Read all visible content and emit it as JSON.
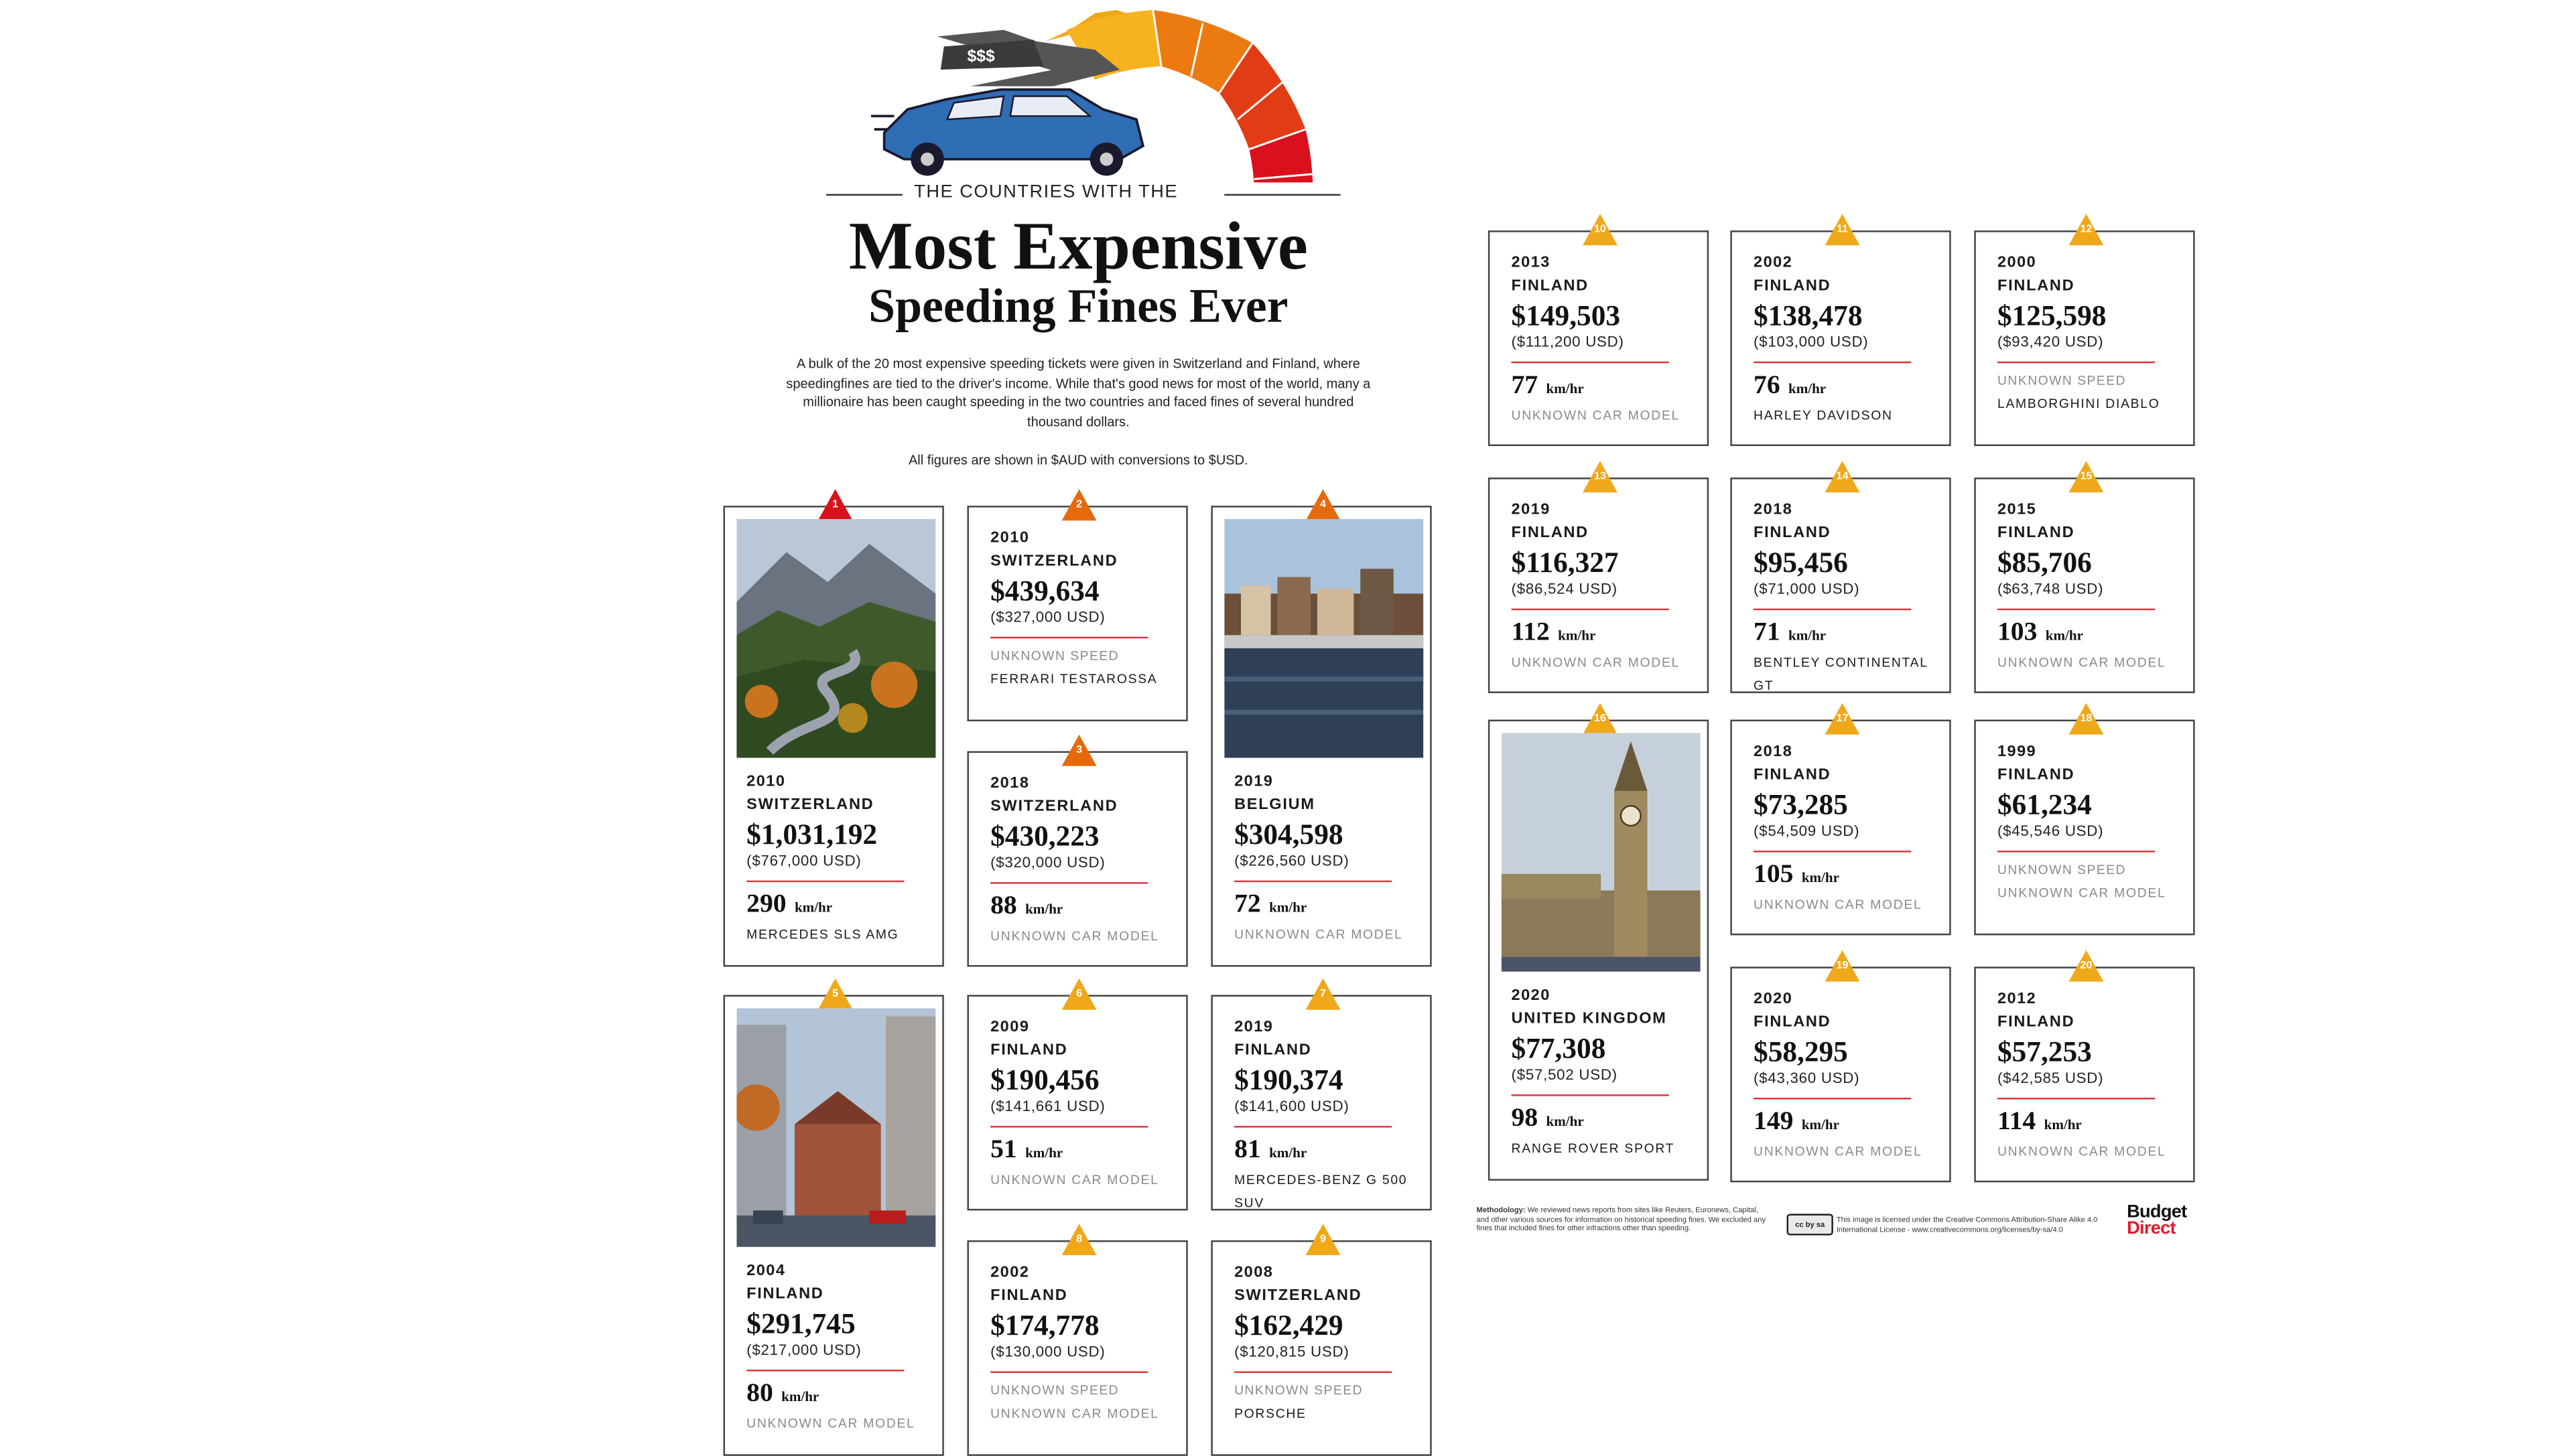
{
  "header": {
    "supertitle": "THE COUNTRIES WITH THE",
    "title_line1": "Most Expensive",
    "title_line2": "Speeding Fines Ever",
    "speedo_sign": "$$$",
    "intro": "A bulk of the 20 most expensive speeding tickets were given in Switzerland and Finland, where speedingfines are tied to the driver's income. While that's good news for most of the world, many a millionaire has been caught speeding in the two countries and faced fines of several hundred thousand dollars.",
    "note": "All figures are shown in $AUD with conversions to $USD."
  },
  "colors": {
    "accent_red": "#d9363e",
    "rank_gradient": [
      "#d9111d",
      "#e66a0c",
      "#f0a81b"
    ],
    "car_blue": "#2f6db5"
  },
  "unit": "km/hr",
  "fines": [
    {
      "rank": "1",
      "year": "2010",
      "country": "SWITZERLAND",
      "aud": "$1,031,192",
      "usd": "($767,000 USD)",
      "speed": "290",
      "car": "MERCEDES SLS AMG",
      "photo": "mountain-road"
    },
    {
      "rank": "2",
      "year": "2010",
      "country": "SWITZERLAND",
      "aud": "$439,634",
      "usd": "($327,000 USD)",
      "speed": "UNKNOWN SPEED",
      "car": "FERRARI TESTAROSSA"
    },
    {
      "rank": "3",
      "year": "2018",
      "country": "SWITZERLAND",
      "aud": "$430,223",
      "usd": "($320,000 USD)",
      "speed": "88",
      "car": "UNKNOWN CAR MODEL"
    },
    {
      "rank": "4",
      "year": "2019",
      "country": "BELGIUM",
      "aud": "$304,598",
      "usd": "($226,560 USD)",
      "speed": "72",
      "car": "UNKNOWN CAR MODEL",
      "photo": "riverside-town"
    },
    {
      "rank": "5",
      "year": "2004",
      "country": "FINLAND",
      "aud": "$291,745",
      "usd": "($217,000 USD)",
      "speed": "80",
      "car": "UNKNOWN CAR MODEL",
      "photo": "helsinki-street"
    },
    {
      "rank": "6",
      "year": "2009",
      "country": "FINLAND",
      "aud": "$190,456",
      "usd": "($141,661 USD)",
      "speed": "51",
      "car": "UNKNOWN CAR MODEL"
    },
    {
      "rank": "7",
      "year": "2019",
      "country": "FINLAND",
      "aud": "$190,374",
      "usd": "($141,600 USD)",
      "speed": "81",
      "car": "MERCEDES-BENZ G 500 SUV"
    },
    {
      "rank": "8",
      "year": "2002",
      "country": "FINLAND",
      "aud": "$174,778",
      "usd": "($130,000 USD)",
      "speed": "UNKNOWN SPEED",
      "car": "UNKNOWN CAR MODEL"
    },
    {
      "rank": "9",
      "year": "2008",
      "country": "SWITZERLAND",
      "aud": "$162,429",
      "usd": "($120,815 USD)",
      "speed": "UNKNOWN SPEED",
      "car": "PORSCHE"
    },
    {
      "rank": "10",
      "year": "2013",
      "country": "FINLAND",
      "aud": "$149,503",
      "usd": "($111,200 USD)",
      "speed": "77",
      "car": "UNKNOWN CAR MODEL"
    },
    {
      "rank": "11",
      "year": "2002",
      "country": "FINLAND",
      "aud": "$138,478",
      "usd": "($103,000 USD)",
      "speed": "76",
      "car": "HARLEY DAVIDSON"
    },
    {
      "rank": "12",
      "year": "2000",
      "country": "FINLAND",
      "aud": "$125,598",
      "usd": "($93,420 USD)",
      "speed": "UNKNOWN SPEED",
      "car": "LAMBORGHINI DIABLO"
    },
    {
      "rank": "13",
      "year": "2019",
      "country": "FINLAND",
      "aud": "$116,327",
      "usd": "($86,524 USD)",
      "speed": "112",
      "car": "UNKNOWN CAR MODEL"
    },
    {
      "rank": "14",
      "year": "2018",
      "country": "FINLAND",
      "aud": "$95,456",
      "usd": "($71,000 USD)",
      "speed": "71",
      "car": "BENTLEY CONTINENTAL GT"
    },
    {
      "rank": "15",
      "year": "2015",
      "country": "FINLAND",
      "aud": "$85,706",
      "usd": "($63,748 USD)",
      "speed": "103",
      "car": "UNKNOWN CAR MODEL"
    },
    {
      "rank": "16",
      "year": "2020",
      "country": "UNITED KINGDOM",
      "aud": "$77,308",
      "usd": "($57,502 USD)",
      "speed": "98",
      "car": "RANGE ROVER SPORT",
      "photo": "big-ben"
    },
    {
      "rank": "17",
      "year": "2018",
      "country": "FINLAND",
      "aud": "$73,285",
      "usd": "($54,509 USD)",
      "speed": "105",
      "car": "UNKNOWN CAR MODEL"
    },
    {
      "rank": "18",
      "year": "1999",
      "country": "FINLAND",
      "aud": "$61,234",
      "usd": "($45,546 USD)",
      "speed": "UNKNOWN SPEED",
      "car": "UNKNOWN CAR MODEL"
    },
    {
      "rank": "19",
      "year": "2020",
      "country": "FINLAND",
      "aud": "$58,295",
      "usd": "($43,360 USD)",
      "speed": "149",
      "car": "UNKNOWN CAR MODEL"
    },
    {
      "rank": "20",
      "year": "2012",
      "country": "FINLAND",
      "aud": "$57,253",
      "usd": "($42,585 USD)",
      "speed": "114",
      "car": "UNKNOWN CAR MODEL"
    }
  ],
  "footer": {
    "methodology_label": "Methodology:",
    "methodology_text": "We reviewed news reports from sites like Reuters, Euronews, Capital, and other various sources for information on historical speeding fines. We excluded any fines that included fines for other infractions other than speeding.",
    "license_badge": "cc by sa",
    "license_text": "This image is licensed under the Creative Commons Attribution-Share Alike 4.0 International License - www.creativecommons.org/licenses/by-sa/4.0",
    "brand_line1": "Budget",
    "brand_line2": "Direct"
  }
}
